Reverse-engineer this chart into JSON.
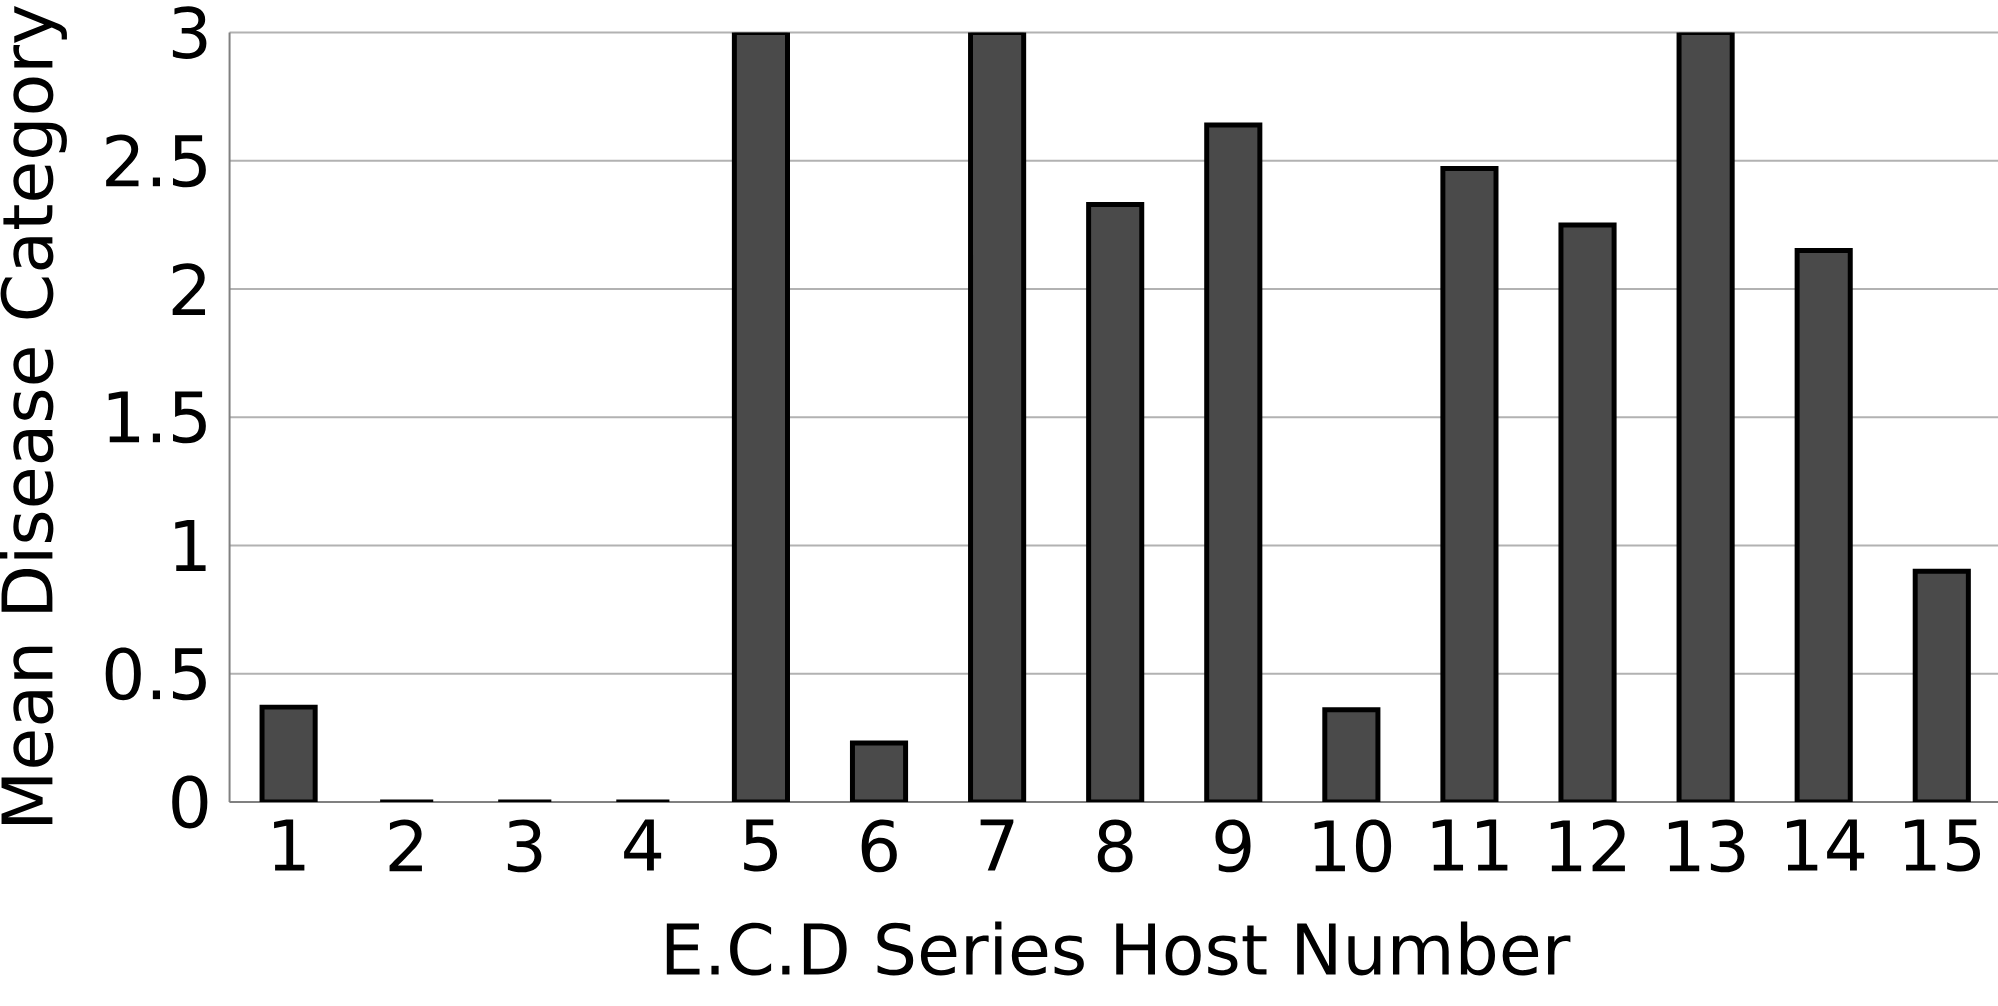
{
  "chart_data": {
    "type": "bar",
    "xlabel": "E.C.D Series Host Number",
    "ylabel": "Mean Disease Category",
    "categories": [
      "1",
      "2",
      "3",
      "4",
      "5",
      "6",
      "7",
      "8",
      "9",
      "10",
      "11",
      "12",
      "13",
      "14",
      "15"
    ],
    "values": [
      0.37,
      0,
      0,
      0,
      3,
      0.23,
      3,
      2.33,
      2.64,
      0.36,
      2.47,
      2.25,
      3,
      2.15,
      0.9
    ],
    "color": "#4a4a4a",
    "ylim": [
      0,
      3
    ],
    "yticks": [
      0,
      0.5,
      1,
      1.5,
      2,
      2.5,
      3
    ],
    "grid": "y"
  }
}
